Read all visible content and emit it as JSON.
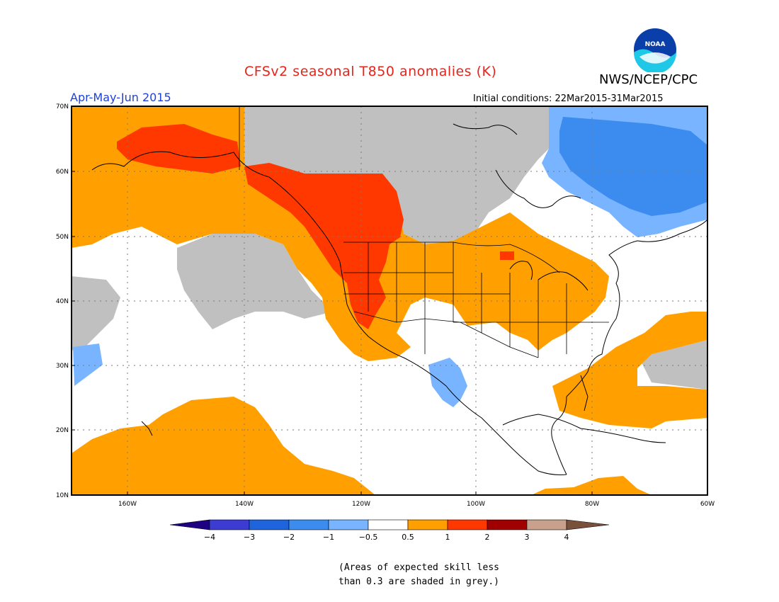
{
  "header": {
    "title": "CFSv2 seasonal T850 anomalies (K)",
    "agency": "NWS/NCEP/CPC",
    "period": "Apr-May-Jun 2015",
    "initial_conditions": "Initial conditions: 22Mar2015-31Mar2015",
    "logo_text": "NOAA"
  },
  "map": {
    "lat_labels": [
      "70N",
      "60N",
      "50N",
      "40N",
      "30N",
      "20N",
      "10N"
    ],
    "lon_labels": [
      "160W",
      "140W",
      "120W",
      "100W",
      "80W",
      "60W"
    ],
    "colors": {
      "grey": "#c0c0c0",
      "orange": "#ffa000",
      "red_orange": "#ff3800",
      "light_blue": "#78b4ff",
      "blue": "#3c8cf0",
      "white": "#ffffff"
    }
  },
  "colorbar": {
    "labels": [
      "−4",
      "−3",
      "−2",
      "−1",
      "−0.5",
      "0.5",
      "1",
      "2",
      "3",
      "4"
    ],
    "colors": [
      "#1e0082",
      "#3c3cd2",
      "#1e64dc",
      "#3c8cf0",
      "#78b4ff",
      "#ffffff",
      "#ffa000",
      "#ff3800",
      "#a00000",
      "#c8a08c",
      "#78503c"
    ]
  },
  "note": {
    "line1": "(Areas of expected skill less",
    "line2": "than 0.3 are shaded in grey.)"
  }
}
